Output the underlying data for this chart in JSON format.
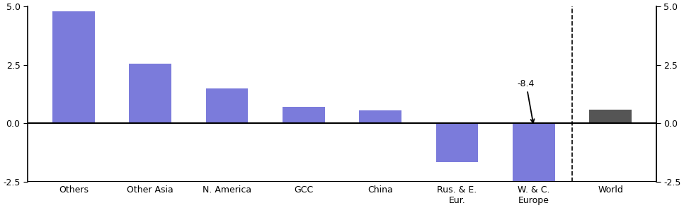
{
  "categories": [
    "Others",
    "Other Asia",
    "N. America",
    "GCC",
    "China",
    "Rus. & E.\nEur.",
    "W. & C.\nEurope",
    "World"
  ],
  "values": [
    4.8,
    2.55,
    1.5,
    0.7,
    0.55,
    -1.65,
    -2.5,
    0.6
  ],
  "bar_colors": [
    "#7b7bdb",
    "#7b7bdb",
    "#7b7bdb",
    "#7b7bdb",
    "#7b7bdb",
    "#7b7bdb",
    "#7b7bdb",
    "#555555"
  ],
  "ylim": [
    -2.5,
    5.0
  ],
  "yticks": [
    -2.5,
    0.0,
    2.5,
    5.0
  ],
  "annotation_text": "-8.4",
  "annotation_bar_index": 6
}
